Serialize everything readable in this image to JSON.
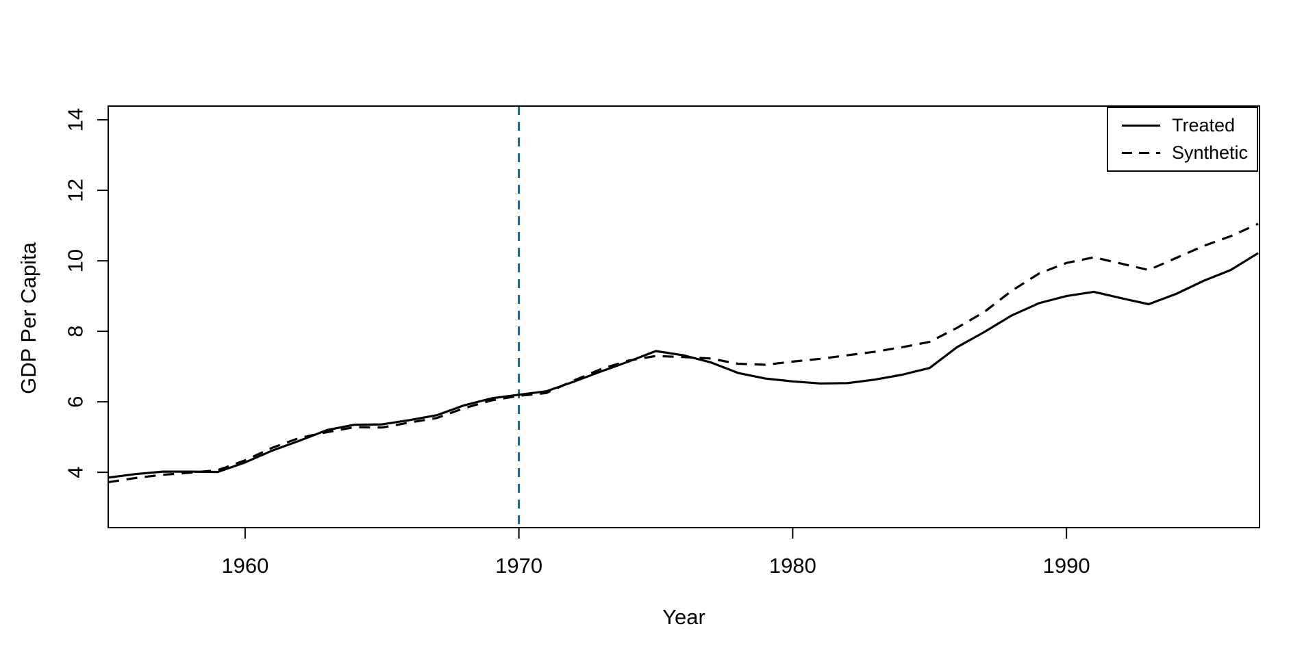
{
  "chart_data": {
    "type": "line",
    "title": "",
    "xlabel": "Year",
    "ylabel": "GDP Per Capita",
    "xlim": [
      1955,
      1997.05
    ],
    "ylim": [
      2.43,
      14.39
    ],
    "x_ticks": [
      "1960",
      "1970",
      "1980",
      "1990"
    ],
    "y_ticks": [
      "4",
      "6",
      "8",
      "10",
      "12",
      "14"
    ],
    "grid": false,
    "legend_position": "topright",
    "x": [
      1955,
      1956,
      1957,
      1958,
      1959,
      1960,
      1961,
      1962,
      1963,
      1964,
      1965,
      1966,
      1967,
      1968,
      1969,
      1970,
      1971,
      1972,
      1973,
      1974,
      1975,
      1976,
      1977,
      1978,
      1979,
      1980,
      1981,
      1982,
      1983,
      1984,
      1985,
      1986,
      1987,
      1988,
      1989,
      1990,
      1991,
      1992,
      1993,
      1994,
      1995,
      1996,
      1997
    ],
    "series": [
      {
        "name": "Treated",
        "line_style": "solid",
        "color": "#000000",
        "values": [
          3.85,
          3.95,
          4.02,
          4.02,
          4.01,
          4.28,
          4.62,
          4.9,
          5.2,
          5.35,
          5.36,
          5.48,
          5.62,
          5.9,
          6.1,
          6.2,
          6.3,
          6.57,
          6.86,
          7.14,
          7.44,
          7.32,
          7.12,
          6.82,
          6.66,
          6.58,
          6.52,
          6.53,
          6.63,
          6.77,
          6.96,
          7.55,
          7.98,
          8.45,
          8.8,
          9.0,
          9.12,
          8.94,
          8.77,
          9.06,
          9.43,
          9.74,
          10.22
        ]
      },
      {
        "name": "Synthetic",
        "line_style": "dashed",
        "color": "#000000",
        "values": [
          3.72,
          3.84,
          3.93,
          3.99,
          4.06,
          4.34,
          4.7,
          4.98,
          5.14,
          5.28,
          5.27,
          5.41,
          5.54,
          5.82,
          6.04,
          6.17,
          6.25,
          6.6,
          6.93,
          7.17,
          7.3,
          7.27,
          7.23,
          7.08,
          7.05,
          7.14,
          7.22,
          7.32,
          7.42,
          7.55,
          7.7,
          8.1,
          8.55,
          9.15,
          9.64,
          9.94,
          10.1,
          9.92,
          9.74,
          10.08,
          10.42,
          10.7,
          11.05
        ]
      }
    ],
    "vline": {
      "x": 1970,
      "style": "dashed",
      "color": "#20607c"
    },
    "colors": {
      "axis": "#000000",
      "background": "#ffffff"
    }
  }
}
